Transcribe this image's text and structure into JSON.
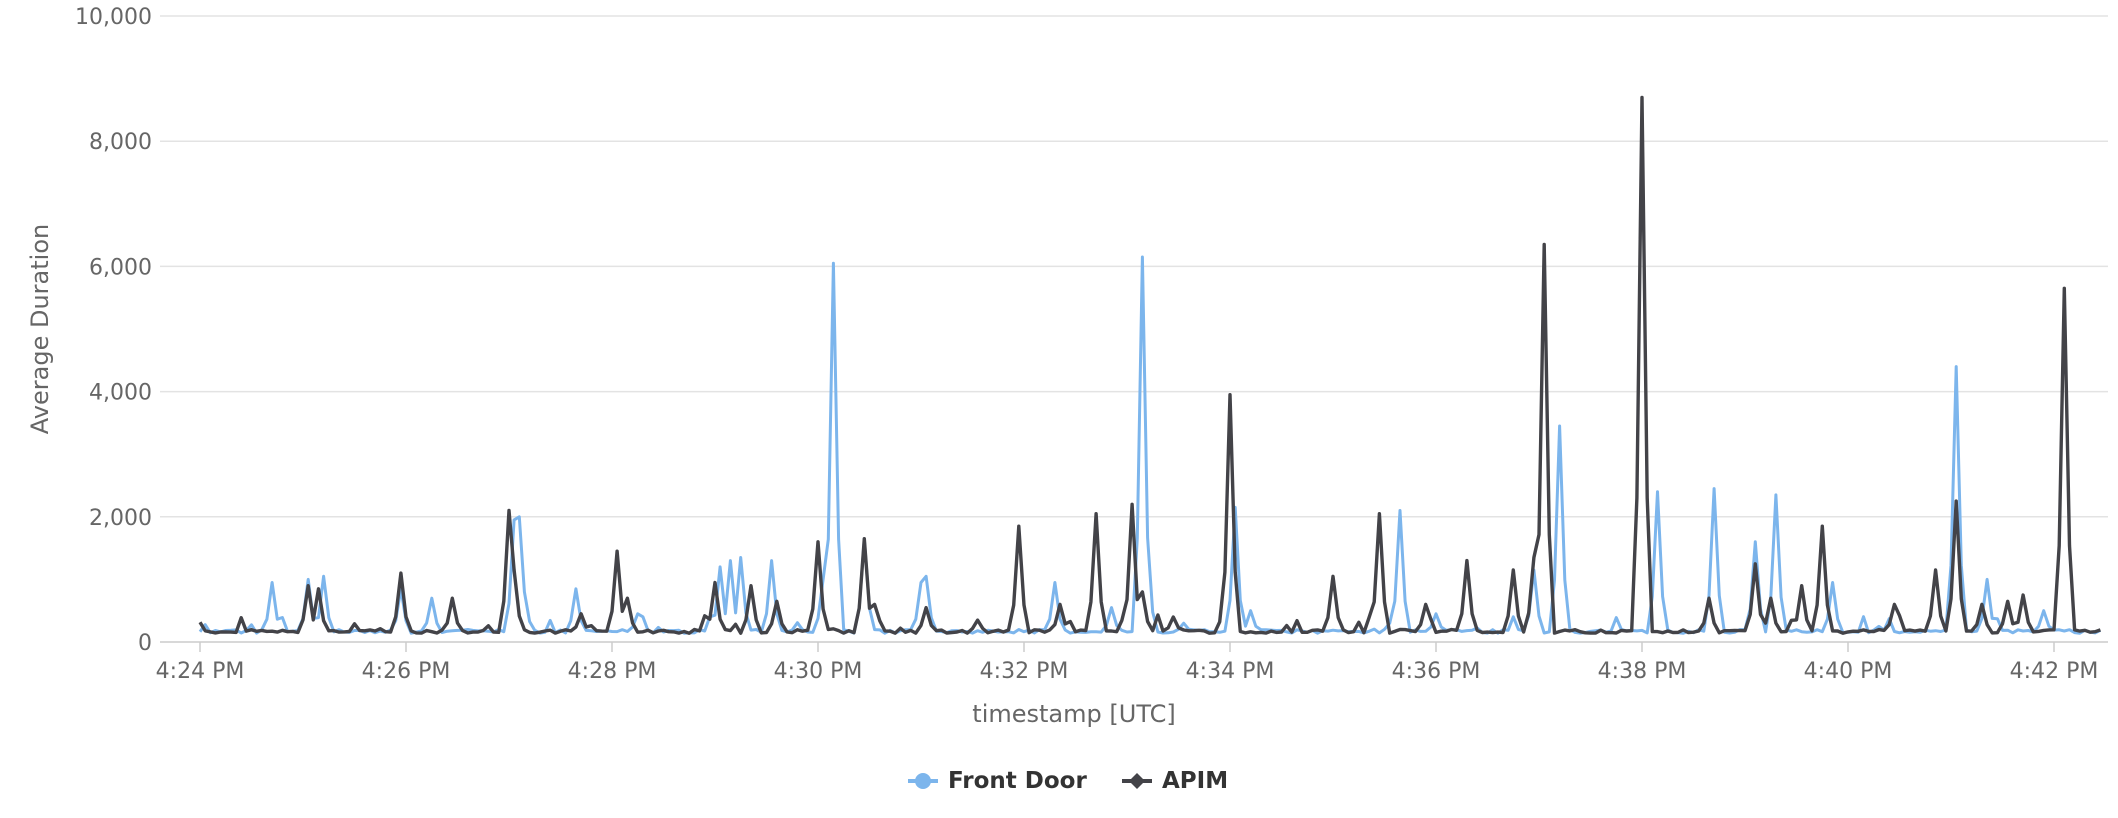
{
  "chart_data": {
    "type": "line",
    "xlabel": "timestamp [UTC]",
    "ylabel": "Average Duration",
    "ylim": [
      0,
      10000
    ],
    "yticks": [
      0,
      2000,
      4000,
      6000,
      8000,
      10000
    ],
    "ytick_labels": [
      "0",
      "2,000",
      "4,000",
      "6,000",
      "8,000",
      "10,000"
    ],
    "xlim_minutes": [
      0,
      18.45
    ],
    "xticks": [
      0,
      2,
      4,
      6,
      8,
      10,
      12,
      14,
      16,
      18
    ],
    "xtick_labels": [
      "4:24 PM",
      "4:26 PM",
      "4:28 PM",
      "4:30 PM",
      "4:32 PM",
      "4:34 PM",
      "4:36 PM",
      "4:38 PM",
      "4:40 PM",
      "4:42 PM"
    ],
    "grid": true,
    "legend_position": "bottom-center",
    "baseline": 170,
    "series": [
      {
        "name": "Front Door",
        "color": "#7cb5ec",
        "marker": "circle",
        "spikes": [
          [
            0.7,
            950
          ],
          [
            1.05,
            1000
          ],
          [
            1.2,
            1050
          ],
          [
            1.95,
            850
          ],
          [
            2.25,
            700
          ],
          [
            3.05,
            1950
          ],
          [
            3.1,
            2000
          ],
          [
            3.15,
            800
          ],
          [
            3.65,
            850
          ],
          [
            4.25,
            450
          ],
          [
            5.05,
            1200
          ],
          [
            5.15,
            1300
          ],
          [
            5.25,
            1350
          ],
          [
            5.55,
            1300
          ],
          [
            6.05,
            1000
          ],
          [
            6.15,
            6050
          ],
          [
            6.45,
            1650
          ],
          [
            7.0,
            950
          ],
          [
            7.05,
            1050
          ],
          [
            8.3,
            950
          ],
          [
            8.85,
            550
          ],
          [
            9.15,
            6150
          ],
          [
            9.2,
            1400
          ],
          [
            9.55,
            300
          ],
          [
            10.05,
            2150
          ],
          [
            10.2,
            500
          ],
          [
            11.55,
            300
          ],
          [
            11.65,
            2100
          ],
          [
            12.0,
            450
          ],
          [
            12.95,
            1150
          ],
          [
            13.2,
            3450
          ],
          [
            13.8,
            200
          ],
          [
            14.15,
            2400
          ],
          [
            14.7,
            2450
          ],
          [
            15.1,
            1600
          ],
          [
            15.3,
            2350
          ],
          [
            15.85,
            950
          ],
          [
            16.3,
            250
          ],
          [
            17.05,
            4400
          ],
          [
            17.35,
            1000
          ],
          [
            17.9,
            500
          ]
        ]
      },
      {
        "name": "APIM",
        "color": "#434348",
        "marker": "diamond",
        "spikes": [
          [
            1.05,
            900
          ],
          [
            1.15,
            850
          ],
          [
            1.95,
            1100
          ],
          [
            2.45,
            700
          ],
          [
            3.0,
            2100
          ],
          [
            3.05,
            1150
          ],
          [
            3.7,
            450
          ],
          [
            4.05,
            1450
          ],
          [
            4.15,
            700
          ],
          [
            5.0,
            950
          ],
          [
            5.35,
            900
          ],
          [
            5.6,
            650
          ],
          [
            6.0,
            1600
          ],
          [
            6.45,
            1650
          ],
          [
            6.55,
            600
          ],
          [
            7.05,
            550
          ],
          [
            7.55,
            350
          ],
          [
            7.95,
            1850
          ],
          [
            8.35,
            600
          ],
          [
            8.7,
            2050
          ],
          [
            9.05,
            2200
          ],
          [
            9.15,
            800
          ],
          [
            9.45,
            400
          ],
          [
            10.0,
            3950
          ],
          [
            11.0,
            1050
          ],
          [
            11.45,
            2050
          ],
          [
            11.9,
            600
          ],
          [
            12.3,
            1300
          ],
          [
            12.75,
            1150
          ],
          [
            12.95,
            1350
          ],
          [
            13.05,
            6350
          ],
          [
            14.0,
            8700
          ],
          [
            14.65,
            700
          ],
          [
            15.1,
            1250
          ],
          [
            15.25,
            700
          ],
          [
            15.75,
            1850
          ],
          [
            15.55,
            900
          ],
          [
            16.45,
            600
          ],
          [
            16.85,
            1150
          ],
          [
            17.05,
            2250
          ],
          [
            17.3,
            600
          ],
          [
            17.55,
            650
          ],
          [
            17.7,
            750
          ],
          [
            18.1,
            5650
          ]
        ]
      }
    ]
  }
}
